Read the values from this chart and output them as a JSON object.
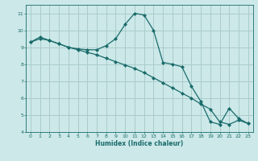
{
  "xlabel": "Humidex (Indice chaleur)",
  "background_color": "#cce8e8",
  "grid_color": "#aacccc",
  "line_color": "#1a6b6b",
  "xlim": [
    -0.5,
    23.5
  ],
  "ylim": [
    4,
    11.5
  ],
  "yticks": [
    4,
    5,
    6,
    7,
    8,
    9,
    10,
    11
  ],
  "xticks": [
    0,
    1,
    2,
    3,
    4,
    5,
    6,
    7,
    8,
    9,
    10,
    11,
    12,
    13,
    14,
    15,
    16,
    17,
    18,
    19,
    20,
    21,
    22,
    23
  ],
  "series1_x": [
    0,
    1,
    2,
    3,
    4,
    5,
    6,
    7,
    8,
    9,
    10,
    11,
    12,
    13,
    14,
    15,
    16,
    17,
    18,
    19,
    20,
    21,
    22,
    23
  ],
  "series1_y": [
    9.3,
    9.6,
    9.4,
    9.2,
    9.0,
    8.9,
    8.85,
    8.85,
    9.1,
    9.5,
    10.35,
    11.0,
    10.9,
    10.0,
    8.1,
    8.0,
    7.85,
    6.7,
    5.8,
    4.6,
    4.45,
    5.4,
    4.8,
    4.5
  ],
  "series2_x": [
    0,
    1,
    2,
    3,
    4,
    5,
    6,
    7,
    8,
    9,
    10,
    11,
    12,
    13,
    14,
    15,
    16,
    17,
    18,
    19,
    20,
    21,
    22,
    23
  ],
  "series2_y": [
    9.3,
    9.5,
    9.4,
    9.2,
    9.0,
    8.85,
    8.7,
    8.55,
    8.35,
    8.15,
    7.95,
    7.75,
    7.5,
    7.2,
    6.9,
    6.6,
    6.3,
    6.0,
    5.65,
    5.35,
    4.6,
    4.45,
    4.7,
    4.5
  ]
}
